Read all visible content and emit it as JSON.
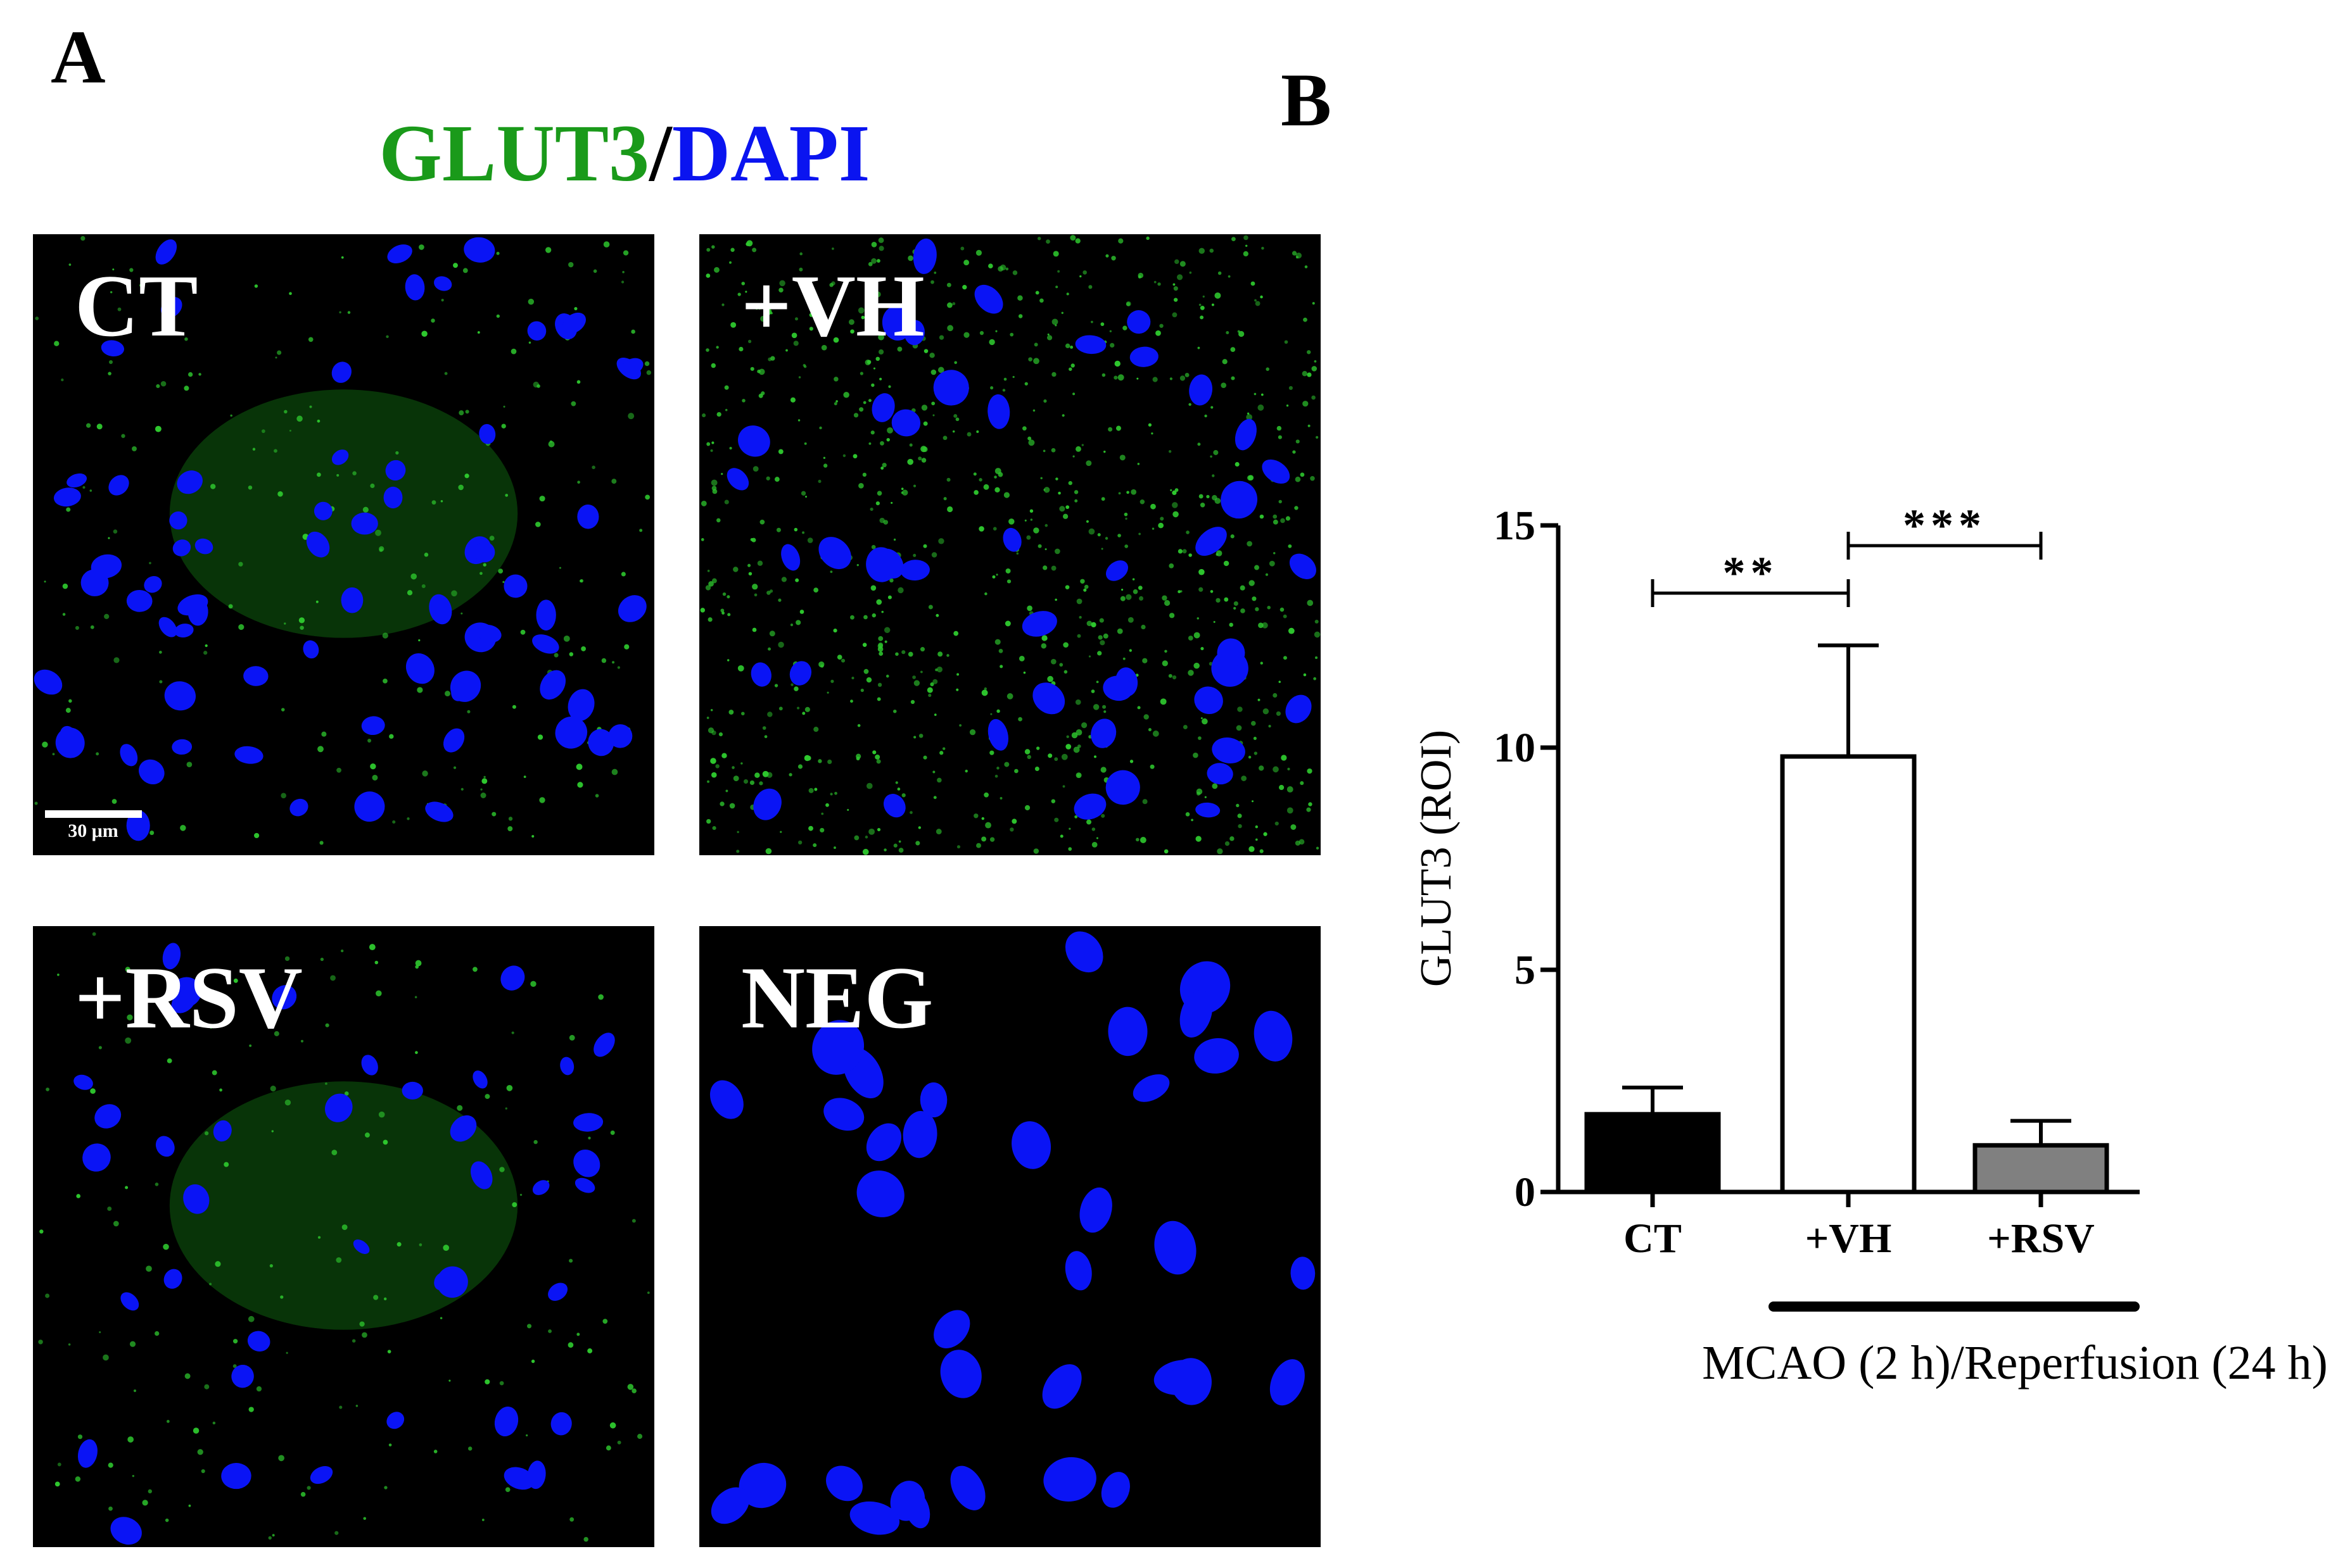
{
  "panel_labels": [
    "A",
    "B"
  ],
  "stain_title": {
    "marker": "GLUT3",
    "separator": "/",
    "counterstain": "DAPI"
  },
  "images": [
    {
      "label": "CT",
      "scale_bar": "30 μm"
    },
    {
      "label": "+VH"
    },
    {
      "label": "+RSV"
    },
    {
      "label": "NEG"
    }
  ],
  "chart_data": {
    "type": "bar",
    "categories": [
      "CT",
      "+VH",
      "+RSV"
    ],
    "values": [
      1.75,
      9.8,
      1.05
    ],
    "errors": [
      0.6,
      2.5,
      0.55
    ],
    "colors": [
      "#000000",
      "#ffffff",
      "#808080"
    ],
    "y_label": "GLUT3 (ROI)",
    "ylim": [
      0,
      15
    ],
    "yticks": [
      0,
      5,
      10,
      15
    ],
    "annotations": [
      {
        "text": "**",
        "from": 0,
        "to": 1
      },
      {
        "text": "***",
        "from": 1,
        "to": 2
      }
    ],
    "group_label": {
      "text": "MCAO (2 h)/Reperfusion (24 h)",
      "from": 1,
      "to": 2
    }
  }
}
